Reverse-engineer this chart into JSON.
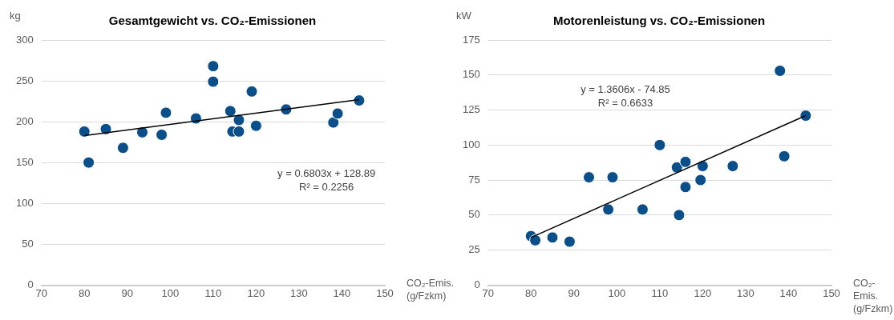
{
  "chart_data": [
    {
      "type": "scatter",
      "title": "Gesamtgewicht vs. CO₂-Emissionen",
      "xlabel": "CO₂-Emis. (g/Fzkm)",
      "ylabel": "kg",
      "xlim": [
        70,
        150
      ],
      "xticks": [
        70,
        80,
        90,
        100,
        110,
        120,
        130,
        140,
        150
      ],
      "ylim": [
        0,
        300
      ],
      "yticks": [
        0,
        50,
        100,
        150,
        200,
        250,
        300
      ],
      "grid": "y",
      "legend": false,
      "series": [
        {
          "marker": "circle",
          "color": "#0b4f8a",
          "x": [
            80,
            81,
            85,
            89,
            93.5,
            98,
            99,
            106,
            110,
            110,
            114,
            114.5,
            116,
            116,
            119,
            120,
            127,
            138,
            139,
            144
          ],
          "values": [
            188,
            150,
            191,
            168,
            187,
            184,
            211,
            204,
            268,
            249,
            213,
            188,
            202,
            188,
            237,
            195,
            215,
            199,
            210,
            226
          ]
        },
        {
          "type": "line",
          "marker": "none",
          "color": "#000000",
          "x": [
            80,
            144
          ],
          "values": [
            183,
            227
          ]
        }
      ],
      "annotations": [
        "y = 0.6803x + 128.89\nR² = 0.2256"
      ]
    },
    {
      "type": "scatter",
      "title": "Motorenleistung vs. CO₂-Emissionen",
      "xlabel": "CO₂-Emis. (g/Fzkm)",
      "ylabel": "kW",
      "xlim": [
        70,
        150
      ],
      "xticks": [
        70,
        80,
        90,
        100,
        110,
        120,
        130,
        140,
        150
      ],
      "ylim": [
        0,
        175
      ],
      "yticks": [
        0,
        25,
        50,
        75,
        100,
        125,
        150,
        175
      ],
      "grid": "y",
      "legend": false,
      "series": [
        {
          "marker": "circle",
          "color": "#0b4f8a",
          "x": [
            80,
            81,
            85,
            89,
            93.5,
            98,
            99,
            106,
            110,
            114,
            114.5,
            116,
            116,
            119.5,
            120,
            127,
            138,
            139,
            144
          ],
          "values": [
            35,
            32,
            34,
            31,
            77,
            54,
            77,
            54,
            100,
            84,
            50,
            88,
            70,
            75,
            85,
            85,
            153,
            92,
            121
          ]
        },
        {
          "type": "line",
          "marker": "none",
          "color": "#000000",
          "x": [
            80,
            144
          ],
          "values": [
            34,
            121
          ]
        }
      ],
      "annotations": [
        "y = 1.3606x - 74.85\nR² = 0.6633"
      ]
    }
  ]
}
